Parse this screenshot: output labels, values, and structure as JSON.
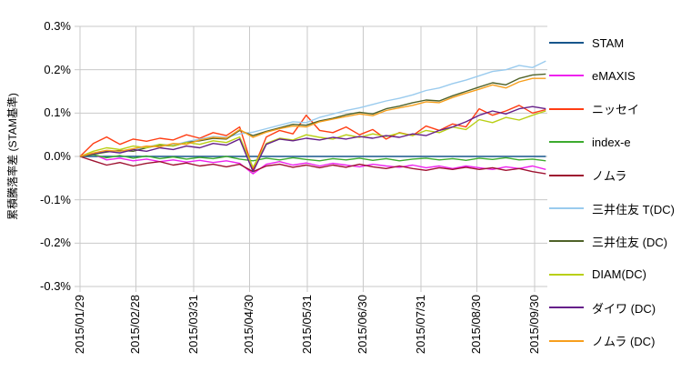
{
  "chart_data": {
    "type": "line",
    "ylabel": "累積騰落率差 (STAM基準)",
    "xlabel": "",
    "unit": "percent",
    "ylim": [
      -0.3,
      0.3
    ],
    "y_tick_step": 0.1,
    "y_ticks": [
      "0.3%",
      "0.2%",
      "0.1%",
      "0.0%",
      "-0.1%",
      "-0.2%",
      "-0.3%"
    ],
    "x_tick_labels": [
      "2015/01/29",
      "2015/02/28",
      "2015/03/31",
      "2015/04/30",
      "2015/05/31",
      "2015/06/30",
      "2015/07/31",
      "2015/08/30",
      "2015/09/30"
    ],
    "x_tick_days": [
      0,
      30,
      61,
      91,
      122,
      152,
      183,
      213,
      244
    ],
    "x_domain_days": [
      0,
      250
    ],
    "grid": true,
    "grid_color": "#c9c9c9",
    "legend_position": "right",
    "series": [
      {
        "name": "STAM",
        "color": "#17568c",
        "values": [
          0,
          0,
          0,
          0,
          0,
          0,
          0,
          0,
          0,
          0,
          0,
          0,
          0,
          0,
          0,
          0,
          0,
          0,
          0,
          0,
          0,
          0,
          0,
          0,
          0,
          0,
          0,
          0,
          0,
          0,
          0,
          0,
          0,
          0,
          0,
          0
        ]
      },
      {
        "name": "eMAXIS",
        "color": "#ee22ee",
        "values": [
          0,
          0.005,
          -0.008,
          -0.004,
          -0.01,
          -0.006,
          -0.012,
          -0.008,
          -0.013,
          -0.009,
          -0.014,
          -0.01,
          -0.016,
          -0.04,
          -0.018,
          -0.012,
          -0.02,
          -0.015,
          -0.022,
          -0.016,
          -0.02,
          -0.024,
          -0.018,
          -0.022,
          -0.025,
          -0.02,
          -0.026,
          -0.022,
          -0.028,
          -0.022,
          -0.026,
          -0.03,
          -0.024,
          -0.028,
          -0.022,
          -0.03
        ]
      },
      {
        "name": "ニッセイ",
        "color": "#ff3d13",
        "values": [
          0,
          0.03,
          0.045,
          0.028,
          0.04,
          0.035,
          0.042,
          0.038,
          0.05,
          0.042,
          0.055,
          0.048,
          0.068,
          -0.03,
          0.045,
          0.06,
          0.052,
          0.095,
          0.06,
          0.055,
          0.068,
          0.05,
          0.062,
          0.04,
          0.055,
          0.048,
          0.07,
          0.06,
          0.075,
          0.068,
          0.11,
          0.095,
          0.105,
          0.118,
          0.1,
          0.108
        ]
      },
      {
        "name": "index-e",
        "color": "#3dab2e",
        "values": [
          0,
          0.004,
          -0.003,
          0.002,
          -0.004,
          0.001,
          -0.005,
          -0.001,
          -0.006,
          -0.002,
          -0.005,
          0.0,
          -0.006,
          -0.01,
          -0.004,
          -0.008,
          -0.003,
          -0.007,
          -0.01,
          -0.005,
          -0.008,
          -0.004,
          -0.009,
          -0.005,
          -0.01,
          -0.006,
          -0.004,
          -0.008,
          -0.005,
          -0.009,
          -0.004,
          -0.007,
          -0.003,
          -0.008,
          -0.006,
          -0.01
        ]
      },
      {
        "name": "ノムラ",
        "color": "#9e1230",
        "values": [
          0,
          -0.01,
          -0.02,
          -0.014,
          -0.022,
          -0.016,
          -0.012,
          -0.02,
          -0.015,
          -0.022,
          -0.018,
          -0.024,
          -0.018,
          -0.035,
          -0.022,
          -0.018,
          -0.025,
          -0.02,
          -0.026,
          -0.02,
          -0.025,
          -0.018,
          -0.024,
          -0.028,
          -0.022,
          -0.028,
          -0.032,
          -0.026,
          -0.03,
          -0.025,
          -0.03,
          -0.026,
          -0.032,
          -0.028,
          -0.035,
          -0.04
        ]
      },
      {
        "name": "三井住友 T(DC)",
        "color": "#9acbee",
        "values": [
          0,
          0.006,
          0.012,
          0.01,
          0.016,
          0.022,
          0.028,
          0.026,
          0.034,
          0.04,
          0.046,
          0.044,
          0.052,
          0.056,
          0.064,
          0.072,
          0.08,
          0.078,
          0.09,
          0.098,
          0.106,
          0.112,
          0.12,
          0.128,
          0.134,
          0.142,
          0.152,
          0.158,
          0.168,
          0.176,
          0.186,
          0.196,
          0.2,
          0.21,
          0.205,
          0.22
        ]
      },
      {
        "name": "三井住友 (DC)",
        "color": "#4f6228",
        "values": [
          0,
          0.005,
          0.01,
          0.014,
          0.012,
          0.02,
          0.026,
          0.024,
          0.032,
          0.036,
          0.042,
          0.04,
          0.06,
          0.048,
          0.058,
          0.066,
          0.074,
          0.072,
          0.082,
          0.088,
          0.096,
          0.102,
          0.098,
          0.11,
          0.116,
          0.124,
          0.13,
          0.128,
          0.14,
          0.15,
          0.16,
          0.17,
          0.165,
          0.18,
          0.188,
          0.19
        ]
      },
      {
        "name": "DIAM(DC)",
        "color": "#b9cf15",
        "values": [
          0,
          0.012,
          0.02,
          0.016,
          0.024,
          0.02,
          0.028,
          0.024,
          0.032,
          0.028,
          0.036,
          0.032,
          0.045,
          -0.025,
          0.03,
          0.042,
          0.038,
          0.05,
          0.044,
          0.04,
          0.05,
          0.044,
          0.052,
          0.046,
          0.054,
          0.048,
          0.06,
          0.055,
          0.068,
          0.062,
          0.085,
          0.078,
          0.09,
          0.084,
          0.095,
          0.105
        ]
      },
      {
        "name": "ダイワ (DC)",
        "color": "#66208a",
        "values": [
          0,
          0.006,
          0.012,
          0.008,
          0.016,
          0.012,
          0.02,
          0.016,
          0.024,
          0.02,
          0.03,
          0.026,
          0.04,
          -0.035,
          0.028,
          0.04,
          0.036,
          0.042,
          0.038,
          0.044,
          0.04,
          0.046,
          0.042,
          0.048,
          0.044,
          0.052,
          0.048,
          0.06,
          0.068,
          0.08,
          0.095,
          0.105,
          0.098,
          0.11,
          0.115,
          0.11
        ]
      },
      {
        "name": "ノムラ (DC)",
        "color": "#f79f1d",
        "values": [
          0,
          0.008,
          0.014,
          0.012,
          0.018,
          0.024,
          0.022,
          0.03,
          0.028,
          0.038,
          0.044,
          0.042,
          0.062,
          0.044,
          0.056,
          0.064,
          0.07,
          0.068,
          0.08,
          0.086,
          0.092,
          0.098,
          0.094,
          0.106,
          0.112,
          0.118,
          0.126,
          0.124,
          0.136,
          0.146,
          0.155,
          0.165,
          0.158,
          0.172,
          0.18,
          0.18
        ]
      }
    ]
  }
}
